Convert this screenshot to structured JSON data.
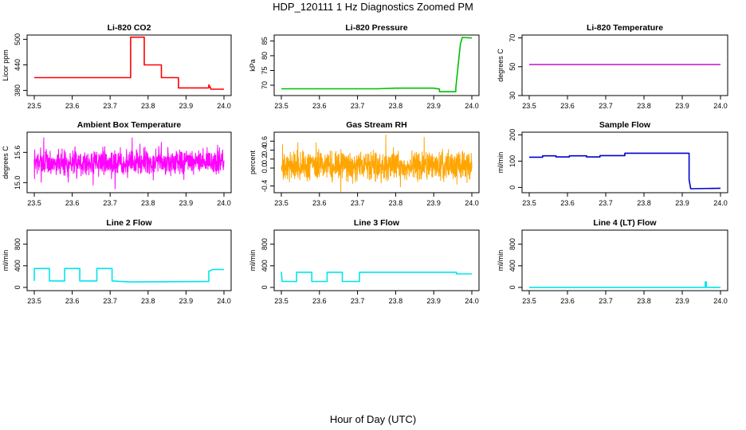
{
  "figure": {
    "title": "HDP_120111  1 Hz Diagnostics Zoomed PM",
    "xlabel": "Hour of Day (UTC)"
  },
  "chart_data": [
    {
      "id": "co2",
      "type": "line",
      "title": "Li-820 CO2",
      "ylabel": "Licor ppm",
      "color": "#ff0000",
      "xlim": [
        23.5,
        24.0
      ],
      "ylim": [
        368,
        510
      ],
      "xticks": [
        "23.5",
        "23.6",
        "23.7",
        "23.8",
        "23.9",
        "24.0"
      ],
      "yticks": [
        380,
        440,
        500
      ],
      "yticklabels": [
        "380",
        "440",
        "500"
      ],
      "x": [
        23.5,
        23.754,
        23.754,
        23.79,
        23.79,
        23.835,
        23.835,
        23.88,
        23.88,
        23.96,
        23.96,
        23.965,
        23.965,
        24.0
      ],
      "y": [
        410,
        410,
        505,
        505,
        440,
        440,
        410,
        410,
        386,
        386,
        393,
        386,
        383,
        383
      ]
    },
    {
      "id": "pressure",
      "type": "line",
      "title": "Li-820 Pressure",
      "ylabel": "kPa",
      "color": "#00c000",
      "xlim": [
        23.5,
        24.0
      ],
      "ylim": [
        66.5,
        87
      ],
      "xticks": [
        "23.5",
        "23.6",
        "23.7",
        "23.8",
        "23.9",
        "24.0"
      ],
      "yticks": [
        70,
        75,
        80,
        85
      ],
      "yticklabels": [
        "70",
        "75",
        "80",
        "85"
      ],
      "x": [
        23.5,
        23.75,
        23.8,
        23.9,
        23.915,
        23.915,
        23.958,
        23.958,
        23.965,
        23.97,
        23.975,
        24.0
      ],
      "y": [
        68.8,
        68.8,
        69.0,
        69.0,
        68.7,
        67.8,
        67.8,
        69.0,
        78.0,
        84.0,
        86.2,
        86.0
      ]
    },
    {
      "id": "licortemp",
      "type": "line",
      "title": "Li-820 Temperature",
      "ylabel": "degrees C",
      "color": "#cc22cc",
      "xlim": [
        23.5,
        24.0
      ],
      "ylim": [
        30,
        72
      ],
      "xticks": [
        "23.5",
        "23.6",
        "23.7",
        "23.8",
        "23.9",
        "24.0"
      ],
      "yticks": [
        30,
        50,
        70
      ],
      "yticklabels": [
        "30",
        "50",
        "70"
      ],
      "x": [
        23.5,
        24.0
      ],
      "y": [
        51.5,
        51.5
      ]
    },
    {
      "id": "boxtemp",
      "type": "line",
      "title": "Ambient Box Temperature",
      "ylabel": "degrees C",
      "color": "#ff00ff",
      "xlim": [
        23.5,
        24.0
      ],
      "ylim": [
        14.8,
        16.0
      ],
      "xticks": [
        "23.5",
        "23.6",
        "23.7",
        "23.8",
        "23.9",
        "24.0"
      ],
      "yticks": [
        15.0,
        15.6
      ],
      "yticklabels": [
        "15.0",
        "15.6"
      ],
      "noise": {
        "center": 15.4,
        "amp": 0.38,
        "n": 900,
        "seed": 7
      }
    },
    {
      "id": "rh",
      "type": "line",
      "title": "Gas Stream RH",
      "ylabel": "percent",
      "color": "#ffa500",
      "xlim": [
        23.5,
        24.0
      ],
      "ylim": [
        -0.55,
        0.8
      ],
      "xticks": [
        "23.5",
        "23.6",
        "23.7",
        "23.8",
        "23.9",
        "24.0"
      ],
      "yticks": [
        -0.4,
        0.0,
        0.2,
        0.4,
        0.6
      ],
      "yticklabels": [
        "-0.4",
        "0.0",
        "0.2",
        "0.4",
        "0.6"
      ],
      "noise": {
        "center": 0.05,
        "amp": 0.45,
        "n": 1100,
        "seed": 13
      }
    },
    {
      "id": "sampleflow",
      "type": "line",
      "title": "Sample Flow",
      "ylabel": "ml/min",
      "color": "#0000cc",
      "xlim": [
        23.5,
        24.0
      ],
      "ylim": [
        -20,
        210
      ],
      "xticks": [
        "23.5",
        "23.6",
        "23.7",
        "23.8",
        "23.9",
        "24.0"
      ],
      "yticks": [
        0,
        100,
        200
      ],
      "yticklabels": [
        "0",
        "100",
        "200"
      ],
      "x": [
        23.5,
        23.535,
        23.535,
        23.57,
        23.57,
        23.605,
        23.605,
        23.65,
        23.65,
        23.685,
        23.685,
        23.75,
        23.75,
        23.918,
        23.918,
        23.922,
        24.0
      ],
      "y": [
        115,
        115,
        120,
        120,
        116,
        116,
        120,
        120,
        116,
        116,
        121,
        121,
        130,
        130,
        30,
        -5,
        -3
      ]
    },
    {
      "id": "line2",
      "type": "line",
      "title": "Line 2 Flow",
      "ylabel": "ml/min",
      "color": "#00e5ee",
      "xlim": [
        23.5,
        24.0
      ],
      "ylim": [
        -60,
        1060
      ],
      "xticks": [
        "23.5",
        "23.6",
        "23.7",
        "23.8",
        "23.9",
        "24.0"
      ],
      "yticks": [
        0,
        400,
        800
      ],
      "yticklabels": [
        "0",
        "400",
        "800"
      ],
      "x": [
        23.5,
        23.5,
        23.54,
        23.54,
        23.58,
        23.58,
        23.62,
        23.62,
        23.665,
        23.665,
        23.705,
        23.705,
        23.75,
        23.96,
        23.96,
        23.97,
        24.0
      ],
      "y": [
        120,
        350,
        350,
        120,
        120,
        350,
        350,
        120,
        120,
        350,
        350,
        120,
        100,
        110,
        300,
        330,
        330
      ]
    },
    {
      "id": "line3",
      "type": "line",
      "title": "Line 3 Flow",
      "ylabel": "ml/min",
      "color": "#00e5ee",
      "xlim": [
        23.5,
        24.0
      ],
      "ylim": [
        -60,
        1060
      ],
      "xticks": [
        "23.5",
        "23.6",
        "23.7",
        "23.8",
        "23.9",
        "24.0"
      ],
      "yticks": [
        0,
        400,
        800
      ],
      "yticklabels": [
        "0",
        "400",
        "800"
      ],
      "x": [
        23.5,
        23.5,
        23.502,
        23.502,
        23.54,
        23.54,
        23.58,
        23.58,
        23.62,
        23.62,
        23.66,
        23.66,
        23.705,
        23.705,
        23.96,
        23.96,
        24.0
      ],
      "y": [
        290,
        290,
        110,
        110,
        110,
        280,
        280,
        110,
        110,
        280,
        280,
        110,
        110,
        280,
        280,
        250,
        250
      ]
    },
    {
      "id": "line4",
      "type": "line",
      "title": "Line 4 (LT) Flow",
      "ylabel": "ml/min",
      "color": "#00e5ee",
      "xlim": [
        23.5,
        24.0
      ],
      "ylim": [
        -60,
        1060
      ],
      "xticks": [
        "23.5",
        "23.6",
        "23.7",
        "23.8",
        "23.9",
        "24.0"
      ],
      "yticks": [
        0,
        400,
        800
      ],
      "yticklabels": [
        "0",
        "400",
        "800"
      ],
      "x": [
        23.5,
        23.96,
        23.96,
        23.963,
        23.963,
        24.0
      ],
      "y": [
        0,
        0,
        100,
        100,
        0,
        0
      ]
    }
  ]
}
